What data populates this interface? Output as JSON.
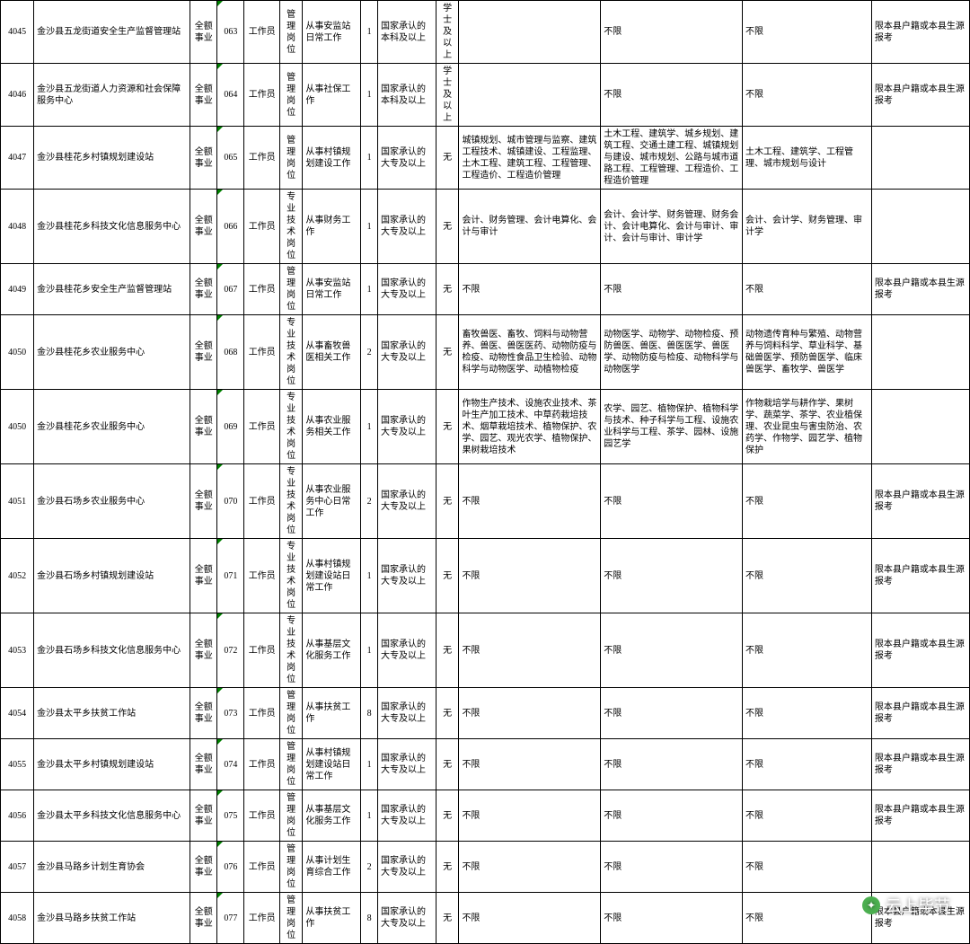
{
  "watermark": "云上毕节",
  "cols": {
    "fund": "全额事业",
    "post": "工作员",
    "cat_mgmt": "管理岗位",
    "cat_tech": "专业技术岗位",
    "edu_bk": "国家承认的本科及以上",
    "edu_dz": "国家承认的大专及以上",
    "deg_xs": "学士及以上",
    "deg_no": "无",
    "unl": "不限",
    "note_local": "限本县户籍或本县生源报考"
  },
  "rows": [
    {
      "id": "4045",
      "unit": "金沙县五龙街道安全生产监督管理站",
      "code": "063",
      "cat": "mgmt",
      "duty": "从事安监站日常工作",
      "num": "1",
      "edu": "bk",
      "deg": "xs",
      "m1": "",
      "m2": "不限",
      "m3": "不限",
      "note": "local"
    },
    {
      "id": "4046",
      "unit": "金沙县五龙街道人力资源和社会保障服务中心",
      "code": "064",
      "cat": "mgmt",
      "duty": "从事社保工作",
      "num": "1",
      "edu": "bk",
      "deg": "xs",
      "m1": "",
      "m2": "不限",
      "m3": "不限",
      "note": "local"
    },
    {
      "id": "4047",
      "unit": "金沙县桂花乡村镇规划建设站",
      "code": "065",
      "cat": "mgmt",
      "duty": "从事村镇规划建设工作",
      "num": "1",
      "edu": "dz",
      "deg": "no",
      "m1": "城镇规划、城市管理与监察、建筑工程技术、城镇建设、工程监理、土木工程、建筑工程、工程管理、工程造价、工程造价管理",
      "m2": "土木工程、建筑学、城乡规划、建筑工程、交通土建工程、城镇规划与建设、城市规划、公路与城市道路工程、工程管理、工程造价、工程造价管理",
      "m3": "土木工程、建筑学、工程管理、城市规划与设计",
      "note": ""
    },
    {
      "id": "4048",
      "unit": "金沙县桂花乡科技文化信息服务中心",
      "code": "066",
      "cat": "tech",
      "duty": "从事财务工作",
      "num": "1",
      "edu": "dz",
      "deg": "no",
      "m1": "会计、财务管理、会计电算化、会计与审计",
      "m2": "会计、会计学、财务管理、财务会计、会计电算化、会计与审计、审计、会计与审计、审计学",
      "m3": "会计、会计学、财务管理、审计学",
      "note": ""
    },
    {
      "id": "4049",
      "unit": "金沙县桂花乡安全生产监督管理站",
      "code": "067",
      "cat": "mgmt",
      "duty": "从事安监站日常工作",
      "num": "1",
      "edu": "dz",
      "deg": "no",
      "m1": "不限",
      "m2": "不限",
      "m3": "不限",
      "note": "local"
    },
    {
      "id": "4050",
      "unit": "金沙县桂花乡农业服务中心",
      "code": "068",
      "cat": "tech",
      "duty": "从事畜牧兽医相关工作",
      "num": "2",
      "edu": "dz",
      "deg": "no",
      "m1": "畜牧兽医、畜牧、饲料与动物营养、兽医、兽医医药、动物防疫与检疫、动物性食品卫生检验、动物科学与动物医学、动植物检疫",
      "m2": "动物医学、动物学、动物检疫、预防兽医、兽医、兽医医学、兽医学、动物防疫与检疫、动物科学与动物医学",
      "m3": "动物遗传育种与繁殖、动物营养与饲料科学、草业科学、基础兽医学、预防兽医学、临床兽医学、畜牧学、兽医学",
      "note": ""
    },
    {
      "id": "4050",
      "unit": "金沙县桂花乡农业服务中心",
      "code": "069",
      "cat": "tech",
      "duty": "从事农业服务相关工作",
      "num": "1",
      "edu": "dz",
      "deg": "no",
      "m1": "作物生产技术、设施农业技术、茶叶生产加工技术、中草药栽培技术、烟草栽培技术、植物保护、农学、园艺、观光农学、植物保护、果树栽培技术",
      "m2": "农学、园艺、植物保护、植物科学与技术、种子科学与工程、设施农业科学与工程、茶学、园林、设施园艺学",
      "m3": "作物栽培学与耕作学、果树学、蔬菜学、茶学、农业植保理、农业昆虫与害虫防治、农药学、作物学、园艺学、植物保护",
      "note": ""
    },
    {
      "id": "4051",
      "unit": "金沙县石场乡农业服务中心",
      "code": "070",
      "cat": "tech",
      "duty": "从事农业服务中心日常工作",
      "num": "2",
      "edu": "dz",
      "deg": "no",
      "m1": "不限",
      "m2": "不限",
      "m3": "不限",
      "note": "local"
    },
    {
      "id": "4052",
      "unit": "金沙县石场乡村镇规划建设站",
      "code": "071",
      "cat": "tech",
      "duty": "从事村镇规划建设站日常工作",
      "num": "1",
      "edu": "dz",
      "deg": "no",
      "m1": "不限",
      "m2": "不限",
      "m3": "不限",
      "note": "local"
    },
    {
      "id": "4053",
      "unit": "金沙县石场乡科技文化信息服务中心",
      "code": "072",
      "cat": "tech",
      "duty": "从事基层文化服务工作",
      "num": "1",
      "edu": "dz",
      "deg": "no",
      "m1": "不限",
      "m2": "不限",
      "m3": "不限",
      "note": "local"
    },
    {
      "id": "4054",
      "unit": "金沙县太平乡扶贫工作站",
      "code": "073",
      "cat": "mgmt",
      "duty": "从事扶贫工作",
      "num": "8",
      "edu": "dz",
      "deg": "no",
      "m1": "不限",
      "m2": "不限",
      "m3": "不限",
      "note": "local"
    },
    {
      "id": "4055",
      "unit": "金沙县太平乡村镇规划建设站",
      "code": "074",
      "cat": "mgmt",
      "duty": "从事村镇规划建设站日常工作",
      "num": "1",
      "edu": "dz",
      "deg": "no",
      "m1": "不限",
      "m2": "不限",
      "m3": "不限",
      "note": "local"
    },
    {
      "id": "4056",
      "unit": "金沙县太平乡科技文化信息服务中心",
      "code": "075",
      "cat": "mgmt",
      "duty": "从事基层文化服务工作",
      "num": "1",
      "edu": "dz",
      "deg": "no",
      "m1": "不限",
      "m2": "不限",
      "m3": "不限",
      "note": "local"
    },
    {
      "id": "4057",
      "unit": "金沙县马路乡计划生育协会",
      "code": "076",
      "cat": "mgmt",
      "duty": "从事计划生育综合工作",
      "num": "2",
      "edu": "dz",
      "deg": "no",
      "m1": "不限",
      "m2": "不限",
      "m3": "不限",
      "note": ""
    },
    {
      "id": "4058",
      "unit": "金沙县马路乡扶贫工作站",
      "code": "077",
      "cat": "mgmt",
      "duty": "从事扶贫工作",
      "num": "8",
      "edu": "dz",
      "deg": "no",
      "m1": "不限",
      "m2": "不限",
      "m3": "不限",
      "note": "local"
    }
  ]
}
